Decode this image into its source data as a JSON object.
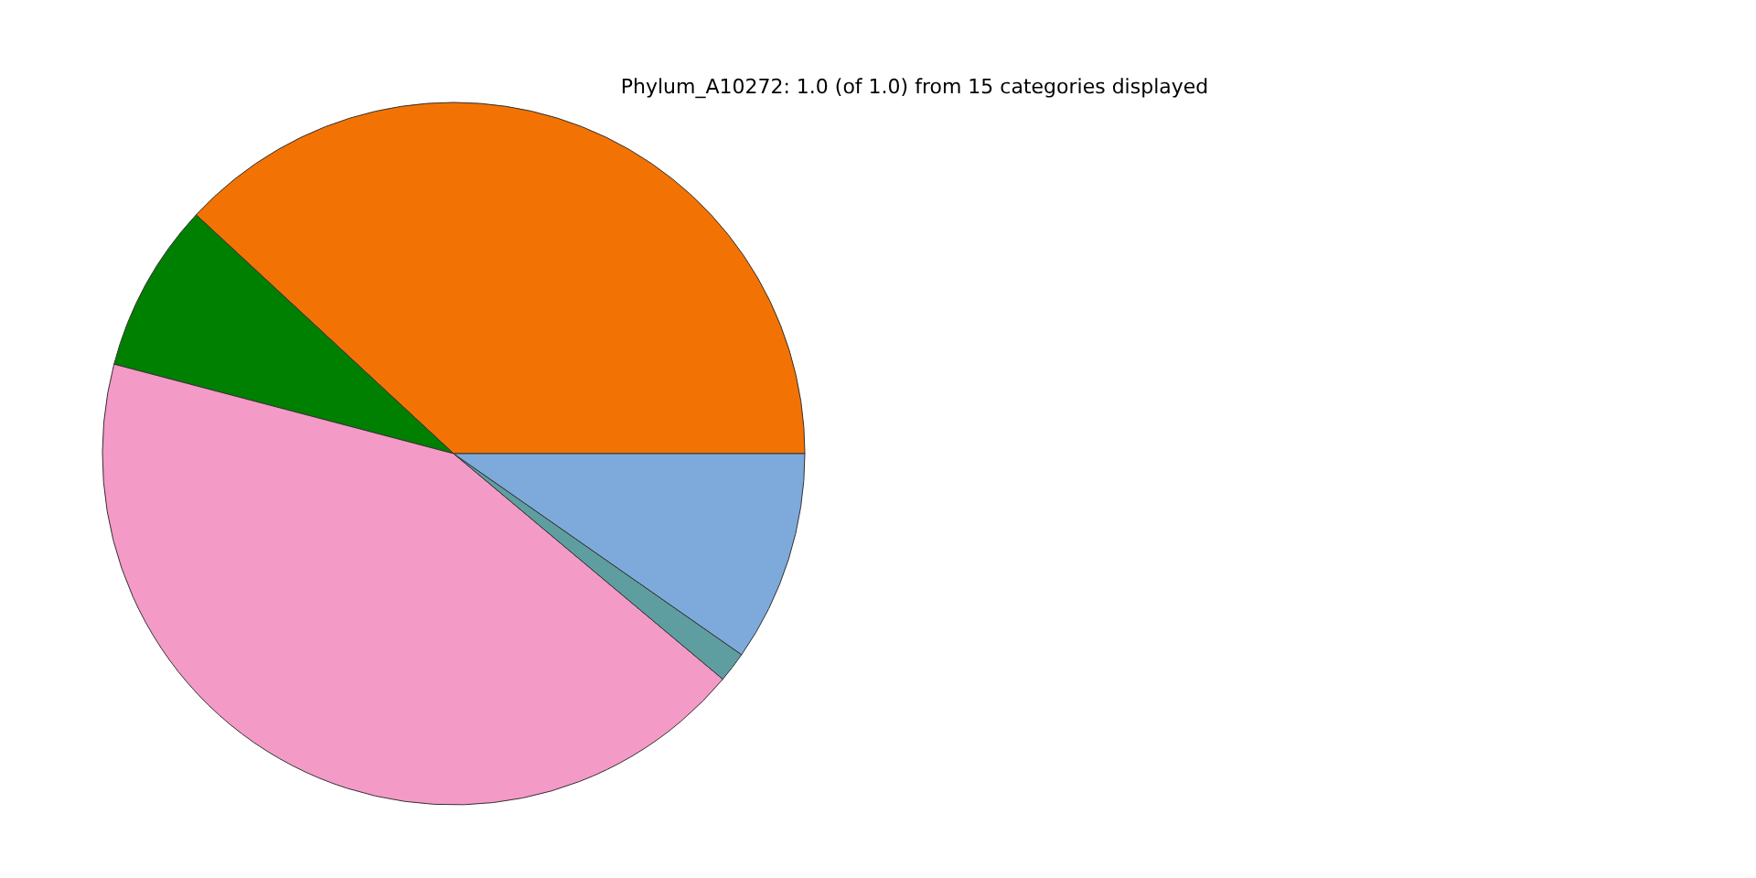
{
  "chart_data": {
    "type": "pie",
    "title": "Phylum_A10272: 1.0 (of 1.0) from 15 categories displayed",
    "categories": [
      null,
      null,
      null,
      null,
      null
    ],
    "values": [
      38.1,
      7.8,
      43.0,
      1.4,
      9.7
    ],
    "colors": [
      "#f27304",
      "#008000",
      "#f49ac6",
      "#5f9ea0",
      "#7eaadb"
    ]
  }
}
